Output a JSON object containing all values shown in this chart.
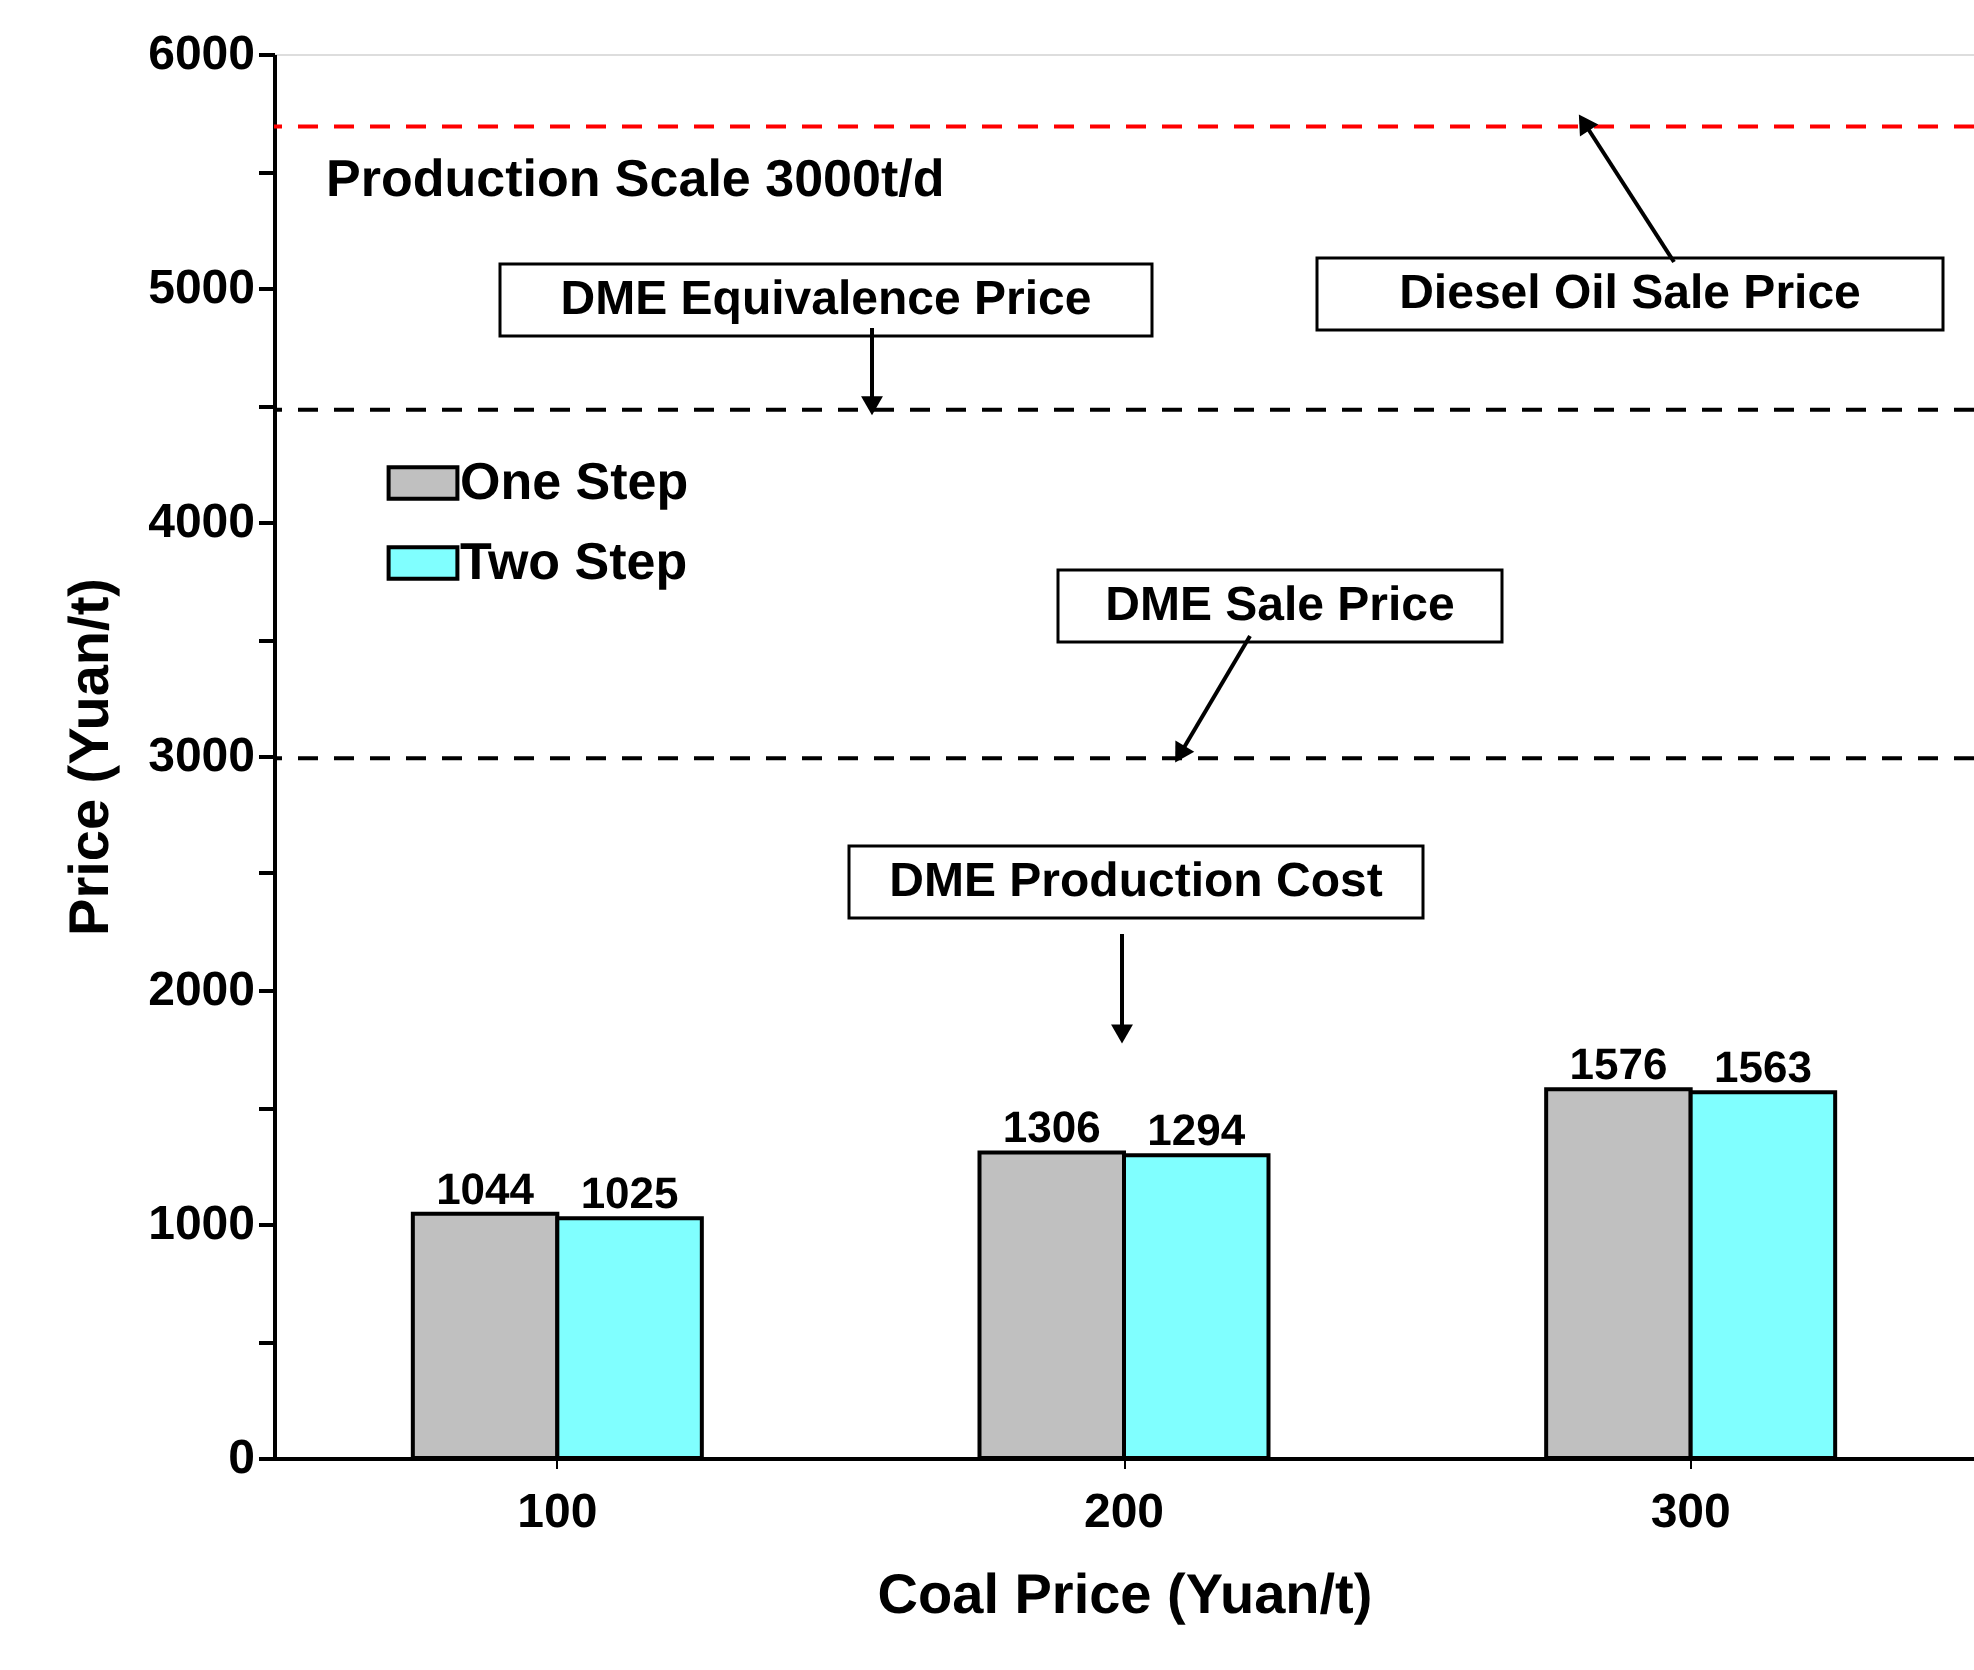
{
  "chart_data": {
    "type": "bar",
    "xlabel": "Coal Price (Yuan/t)",
    "ylabel": "Price (Yuan/t)",
    "categories": [
      "100",
      "200",
      "300"
    ],
    "series": [
      {
        "name": "One Step",
        "color": "#c0c0c0",
        "values": [
          1044,
          1306,
          1576
        ]
      },
      {
        "name": "Two Step",
        "color": "#80ffff",
        "values": [
          1025,
          1294,
          1563
        ]
      }
    ],
    "data_labels": true,
    "ylim": [
      0,
      6000
    ],
    "yticks": [
      0,
      {
        "value": 500,
        "label": null
      },
      1000,
      {
        "value": 1500,
        "label": null
      },
      2000,
      {
        "value": 2500,
        "label": null
      },
      3000,
      {
        "value": 3500,
        "label": null
      },
      4000,
      {
        "value": 4500,
        "label": null
      },
      5000,
      {
        "value": 5500,
        "label": null
      },
      6000
    ],
    "ref_lines": [
      {
        "axis": "y",
        "value": 5690,
        "label": "Diesel Oil Sale Price",
        "color": "#ff0000",
        "line_style": "dashed"
      },
      {
        "axis": "y",
        "value": 4480,
        "label": "DME Equivalence  Price",
        "color": "#000000",
        "line_style": "dashed"
      },
      {
        "axis": "y",
        "value": 2990,
        "label": "DME Sale Price",
        "color": "#000000",
        "line_style": "dashed"
      }
    ],
    "annotations": [
      "Production Scale    3000t/d",
      "DME Production Cost"
    ],
    "legend": "top left",
    "grid": false
  }
}
